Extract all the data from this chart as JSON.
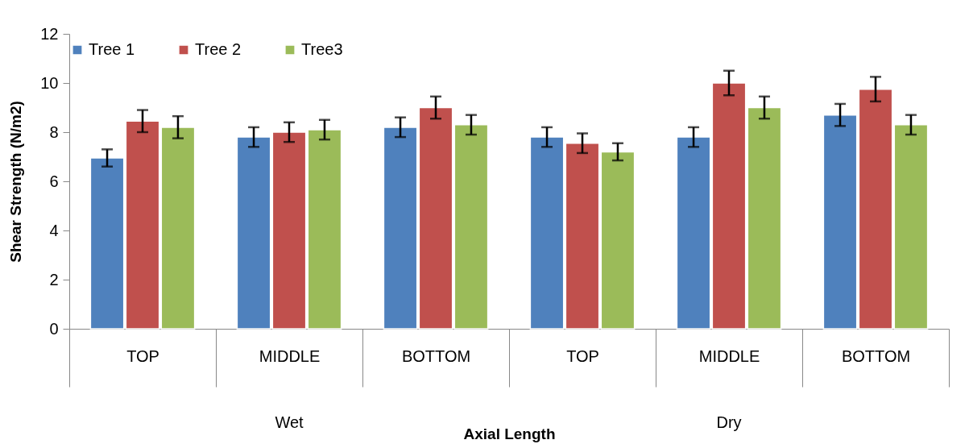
{
  "chart_data": {
    "type": "bar",
    "xlabel": "Axial Length",
    "ylabel": "Shear Strength (N/m2)",
    "categories": [
      "TOP",
      "MIDDLE",
      "BOTTOM",
      "TOP",
      "MIDDLE",
      "BOTTOM"
    ],
    "annotations": [
      "Wet",
      "Dry"
    ],
    "series": [
      {
        "name": "Tree 1",
        "color": "#4f81bd",
        "values": [
          6.95,
          7.8,
          8.2,
          7.8,
          7.8,
          8.7
        ],
        "errors": [
          0.35,
          0.4,
          0.4,
          0.4,
          0.4,
          0.45
        ]
      },
      {
        "name": "Tree 2",
        "color": "#c0504d",
        "values": [
          8.45,
          8.0,
          9.0,
          7.55,
          10.0,
          9.75
        ],
        "errors": [
          0.45,
          0.4,
          0.45,
          0.4,
          0.5,
          0.5
        ]
      },
      {
        "name": "Tree3",
        "color": "#9bbb59",
        "values": [
          8.2,
          8.1,
          8.3,
          7.2,
          9.0,
          8.3
        ],
        "errors": [
          0.45,
          0.4,
          0.4,
          0.35,
          0.45,
          0.4
        ]
      }
    ],
    "ylim": [
      0,
      12
    ],
    "yticks": [
      0,
      2,
      4,
      6,
      8,
      10,
      12
    ],
    "grid": false,
    "legend": "top"
  }
}
